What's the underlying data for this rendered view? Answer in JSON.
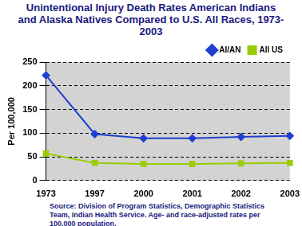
{
  "chart_data": {
    "type": "line",
    "title": "Unintentional Injury Death Rates American Indians and Alaska Natives Compared to U.S. All Races, 1973-2003",
    "source": "Source: Division of Program Statistics, Demographic Statistics Team, Indian Health Service. Age- and race-adjusted rates per 100,000 population.",
    "y_label": "Per 100,000",
    "categories": [
      "1973",
      "1997",
      "2000",
      "2001",
      "2002",
      "2003"
    ],
    "series": [
      {
        "name": "AI/AN",
        "color": "#1f3fcf",
        "marker": "diamond",
        "values": [
          222,
          98,
          89,
          89,
          92,
          94
        ]
      },
      {
        "name": "All US",
        "color": "#99cc00",
        "marker": "square",
        "values": [
          57,
          37,
          35,
          35,
          36,
          37
        ]
      }
    ],
    "ylim": [
      0,
      250
    ],
    "yticks": [
      0,
      50,
      100,
      150,
      200,
      250
    ],
    "grid": true,
    "legend": "top"
  }
}
